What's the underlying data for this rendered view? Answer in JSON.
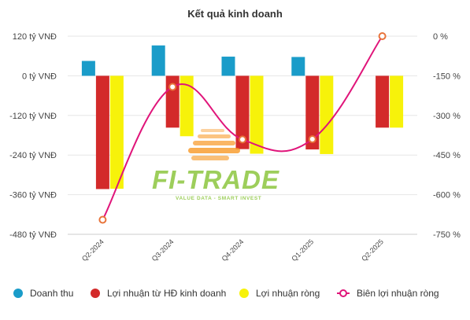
{
  "chart_data": {
    "type": "bar",
    "title": "Kết quả kinh doanh",
    "categories": [
      "Q2-2024",
      "Q3-2024",
      "Q4-2024",
      "Q1-2025",
      "Q2-2025"
    ],
    "series": [
      {
        "name": "Doanh thu",
        "type": "bar",
        "axis": "left",
        "color": "#1a9cc9",
        "values": [
          45,
          92,
          58,
          57,
          0
        ]
      },
      {
        "name": "Lợi nhuận từ HĐ kinh doanh",
        "type": "bar",
        "axis": "left",
        "color": "#d32a2a",
        "values": [
          -343,
          -157,
          -222,
          -223,
          -157
        ]
      },
      {
        "name": "Lợi nhuận ròng",
        "type": "bar",
        "axis": "left",
        "color": "#f7f20a",
        "values": [
          -342,
          -183,
          -236,
          -237,
          -157
        ]
      },
      {
        "name": "Biên lợi nhuận ròng",
        "type": "line",
        "axis": "right",
        "color": "#e0157a",
        "values": [
          -695,
          -192,
          -391,
          -390,
          0
        ]
      }
    ],
    "y_left": {
      "ticks": [
        120,
        0,
        -120,
        -240,
        -360,
        -480
      ],
      "tick_labels": [
        "120 tỷ VNĐ",
        "0 tỷ VNĐ",
        "-120 tỷ VNĐ",
        "-240 tỷ VNĐ",
        "-360 tỷ VNĐ",
        "-480 tỷ VNĐ"
      ],
      "range": [
        -480,
        120
      ]
    },
    "y_right": {
      "ticks": [
        0,
        -150,
        -300,
        -450,
        -600,
        -750
      ],
      "tick_labels": [
        "0 %",
        "-150 %",
        "-300 %",
        "-450 %",
        "-600 %",
        "-750 %"
      ],
      "range": [
        -750,
        0
      ]
    },
    "grid": true,
    "legend_position": "bottom",
    "line_marker_color": "#e8743b"
  },
  "watermark": {
    "logo_text": "FI-TRADE",
    "tagline": "VALUE DATA - SMART INVEST",
    "colors": {
      "green": "#8cc63f",
      "orange": "#f7941d"
    }
  }
}
